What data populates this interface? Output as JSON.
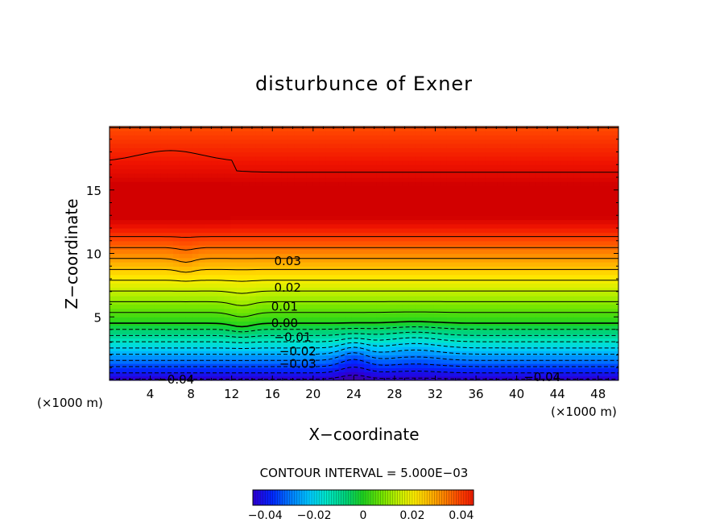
{
  "chart_data": {
    "type": "heatmap",
    "title": "disturbunce of Exner",
    "xlabel": "X−coordinate",
    "ylabel": "Z−coordinate",
    "x_unit": "(×1000 m)",
    "x_unit_right": "(×1000 m)",
    "xlim": [
      0,
      50
    ],
    "ylim": [
      0,
      20
    ],
    "x_ticks": [
      4,
      8,
      12,
      16,
      20,
      24,
      28,
      32,
      36,
      40,
      44,
      48
    ],
    "y_ticks": [
      5,
      10,
      15
    ],
    "contour_interval_label": "CONTOUR INTERVAL = 5.000E−03",
    "contour_interval": 0.005,
    "value_range": [
      -0.045,
      0.045
    ],
    "contour_labels": [
      {
        "text": "0.03",
        "x": 17.5,
        "z": 9.4
      },
      {
        "text": "0.02",
        "x": 17.5,
        "z": 7.3
      },
      {
        "text": "0.01",
        "x": 17.2,
        "z": 5.8
      },
      {
        "text": "0.00",
        "x": 17.2,
        "z": 4.5
      },
      {
        "text": "−0.01",
        "x": 18.0,
        "z": 3.4
      },
      {
        "text": "−0.02",
        "x": 18.5,
        "z": 2.3
      },
      {
        "text": "−0.03",
        "x": 18.5,
        "z": 1.3
      },
      {
        "text": "−0.04",
        "x": 6.5,
        "z": 0.05
      },
      {
        "text": "−0.04",
        "x": 42.5,
        "z": 0.25
      }
    ],
    "colorbar": {
      "ticks": [
        -0.04,
        -0.02,
        0,
        0.02,
        0.04
      ],
      "tick_labels": [
        "−0.04",
        "−0.02",
        "0",
        "0.02",
        "0.04"
      ]
    }
  }
}
